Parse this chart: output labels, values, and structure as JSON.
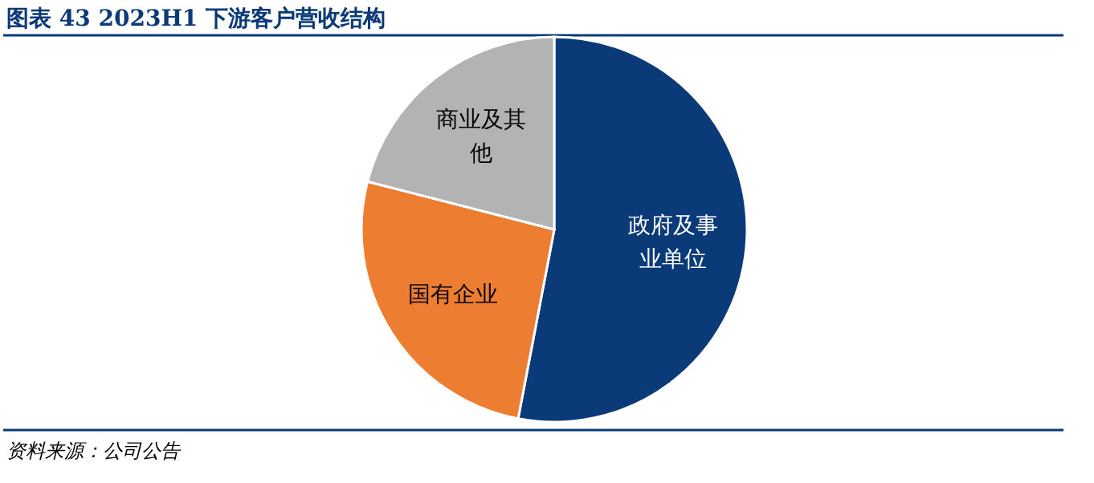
{
  "chart_data": {
    "type": "pie",
    "title": "图表 43  2023H1 下游客户营收结构",
    "categories": [
      "政府及事业单位",
      "国有企业",
      "商业及其他"
    ],
    "values": [
      53,
      26,
      21
    ],
    "colors": [
      "#0b3a78",
      "#ed7d31",
      "#b3b3b3"
    ],
    "annotations": [
      "资料来源：公司公告"
    ]
  }
}
